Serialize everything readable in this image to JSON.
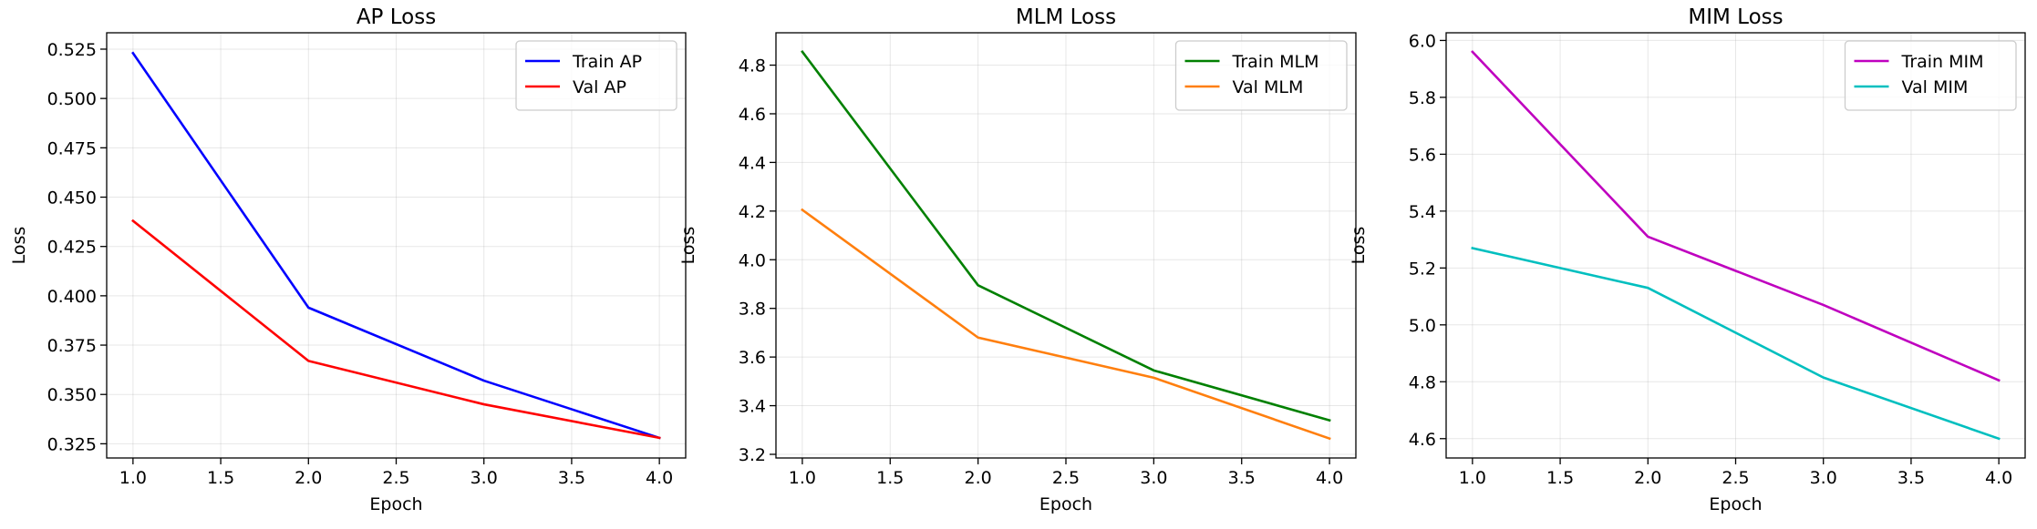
{
  "chart_data": [
    {
      "type": "line",
      "title": "AP Loss",
      "xlabel": "Epoch",
      "ylabel": "Loss",
      "x": [
        1.0,
        2.0,
        3.0,
        4.0
      ],
      "xlim": [
        0.85,
        4.15
      ],
      "ylim": [
        0.3178,
        0.5333
      ],
      "xticks": [
        1.0,
        1.5,
        2.0,
        2.5,
        3.0,
        3.5,
        4.0
      ],
      "xtick_labels": [
        "1.0",
        "1.5",
        "2.0",
        "2.5",
        "3.0",
        "3.5",
        "4.0"
      ],
      "yticks": [
        0.325,
        0.35,
        0.375,
        0.4,
        0.425,
        0.45,
        0.475,
        0.5,
        0.525
      ],
      "ytick_labels": [
        "0.325",
        "0.350",
        "0.375",
        "0.400",
        "0.425",
        "0.450",
        "0.475",
        "0.500",
        "0.525"
      ],
      "grid": true,
      "legend_position": "top-right",
      "series": [
        {
          "name": "Train AP",
          "color": "#0000ff",
          "values": [
            0.523,
            0.394,
            0.357,
            0.328
          ]
        },
        {
          "name": "Val AP",
          "color": "#ff0000",
          "values": [
            0.438,
            0.367,
            0.345,
            0.328
          ]
        }
      ]
    },
    {
      "type": "line",
      "title": "MLM Loss",
      "xlabel": "Epoch",
      "ylabel": "Loss",
      "x": [
        1.0,
        2.0,
        3.0,
        4.0
      ],
      "xlim": [
        0.85,
        4.15
      ],
      "ylim": [
        3.185,
        4.933
      ],
      "xticks": [
        1.0,
        1.5,
        2.0,
        2.5,
        3.0,
        3.5,
        4.0
      ],
      "xtick_labels": [
        "1.0",
        "1.5",
        "2.0",
        "2.5",
        "3.0",
        "3.5",
        "4.0"
      ],
      "yticks": [
        3.2,
        3.4,
        3.6,
        3.8,
        4.0,
        4.2,
        4.4,
        4.6,
        4.8
      ],
      "ytick_labels": [
        "3.2",
        "3.4",
        "3.6",
        "3.8",
        "4.0",
        "4.2",
        "4.4",
        "4.6",
        "4.8"
      ],
      "grid": true,
      "legend_position": "top-right",
      "series": [
        {
          "name": "Train MLM",
          "color": "#008000",
          "values": [
            4.855,
            3.895,
            3.545,
            3.34
          ]
        },
        {
          "name": "Val MLM",
          "color": "#ff7f0e",
          "values": [
            4.205,
            3.68,
            3.515,
            3.265
          ]
        }
      ]
    },
    {
      "type": "line",
      "title": "MIM Loss",
      "xlabel": "Epoch",
      "ylabel": "Loss",
      "x": [
        1.0,
        2.0,
        3.0,
        4.0
      ],
      "xlim": [
        0.85,
        4.15
      ],
      "ylim": [
        4.532,
        6.027
      ],
      "xticks": [
        1.0,
        1.5,
        2.0,
        2.5,
        3.0,
        3.5,
        4.0
      ],
      "xtick_labels": [
        "1.0",
        "1.5",
        "2.0",
        "2.5",
        "3.0",
        "3.5",
        "4.0"
      ],
      "yticks": [
        4.6,
        4.8,
        5.0,
        5.2,
        5.4,
        5.6,
        5.8,
        6.0
      ],
      "ytick_labels": [
        "4.6",
        "4.8",
        "5.0",
        "5.2",
        "5.4",
        "5.6",
        "5.8",
        "6.0"
      ],
      "grid": true,
      "legend_position": "top-right",
      "series": [
        {
          "name": "Train MIM",
          "color": "#bf00bf",
          "values": [
            5.96,
            5.31,
            5.07,
            4.805
          ]
        },
        {
          "name": "Val MIM",
          "color": "#00bfbf",
          "values": [
            5.27,
            5.13,
            4.815,
            4.6
          ]
        }
      ]
    }
  ]
}
